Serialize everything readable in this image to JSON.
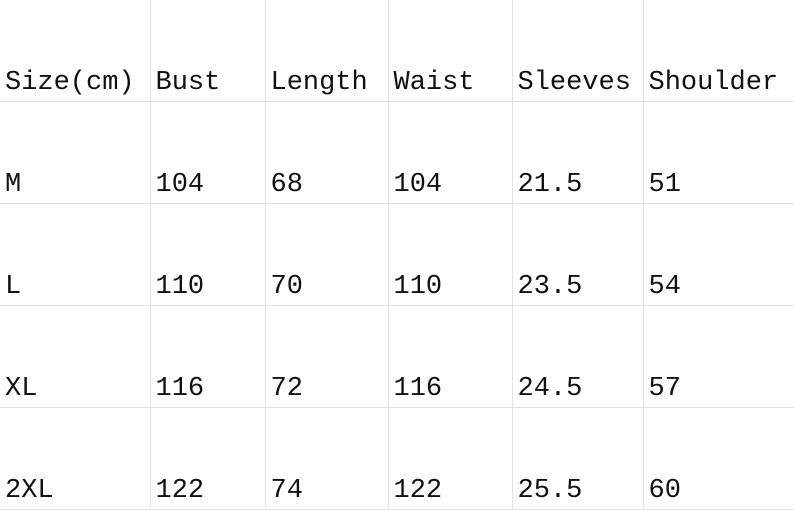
{
  "headers": [
    "Size(cm)",
    "Bust",
    "Length",
    "Waist",
    "Sleeves",
    "Shoulder"
  ],
  "rows": [
    [
      "M",
      "104",
      "68",
      "104",
      "21.5",
      "51"
    ],
    [
      "L",
      "110",
      "70",
      "110",
      "23.5",
      "54"
    ],
    [
      "XL",
      "116",
      "72",
      "116",
      "24.5",
      "57"
    ],
    [
      "2XL",
      "122",
      "74",
      "122",
      "25.5",
      "60"
    ]
  ]
}
